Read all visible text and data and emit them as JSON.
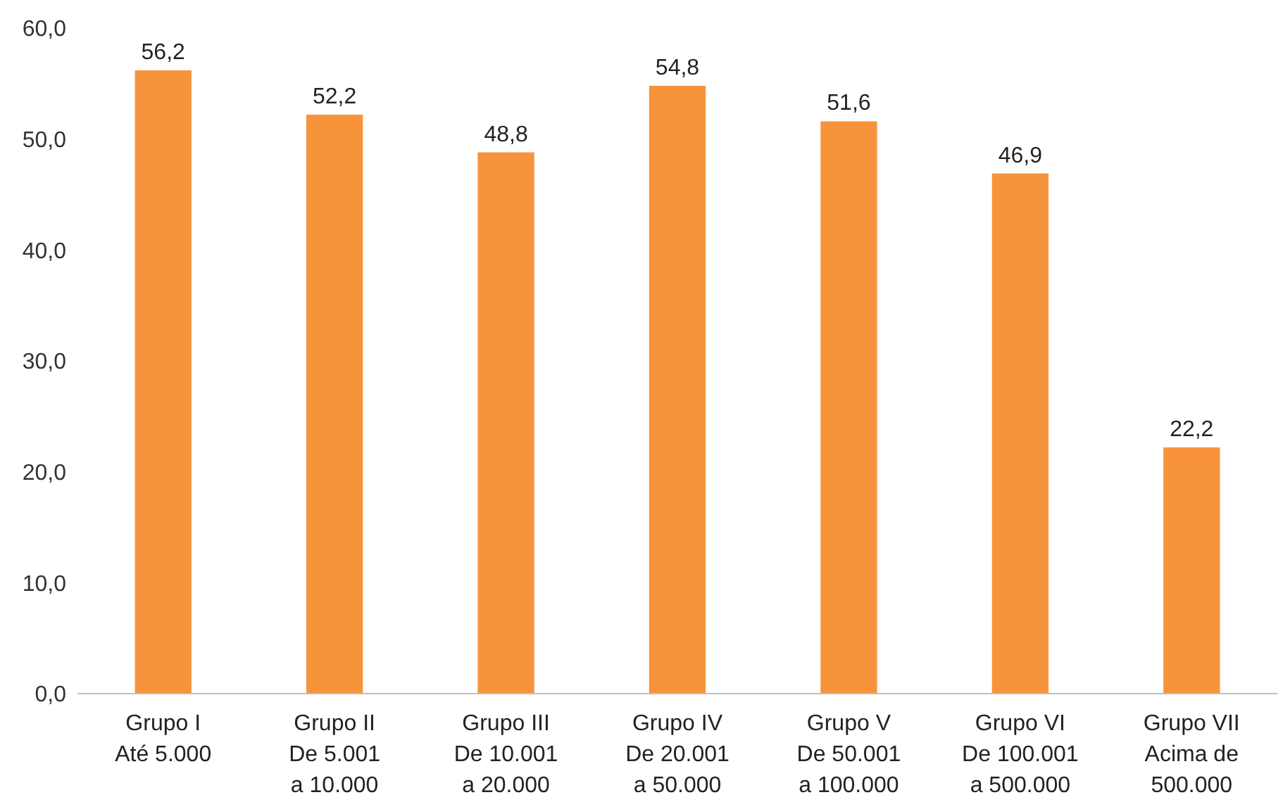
{
  "chart_data": {
    "type": "bar",
    "categories": [
      "Grupo I\nAté 5.000",
      "Grupo II\nDe 5.001\na 10.000",
      "Grupo III\nDe 10.001\na 20.000",
      "Grupo IV\nDe 20.001\na 50.000",
      "Grupo V\nDe 50.001\na 100.000",
      "Grupo VI\nDe 100.001\na 500.000",
      "Grupo VII\nAcima de\n500.000"
    ],
    "values": [
      56.2,
      52.2,
      48.8,
      54.8,
      51.6,
      46.9,
      22.2
    ],
    "value_labels": [
      "56,2",
      "52,2",
      "48,8",
      "54,8",
      "51,6",
      "46,9",
      "22,2"
    ],
    "color": "#f7943b",
    "ylim": [
      0,
      60
    ],
    "yticks": [
      {
        "value": 0,
        "label": "0,0"
      },
      {
        "value": 10,
        "label": "10,0"
      },
      {
        "value": 20,
        "label": "20,0"
      },
      {
        "value": 30,
        "label": "30,0"
      },
      {
        "value": 40,
        "label": "40,0"
      },
      {
        "value": 50,
        "label": "50,0"
      },
      {
        "value": 60,
        "label": "60,0"
      }
    ],
    "grid": false
  }
}
